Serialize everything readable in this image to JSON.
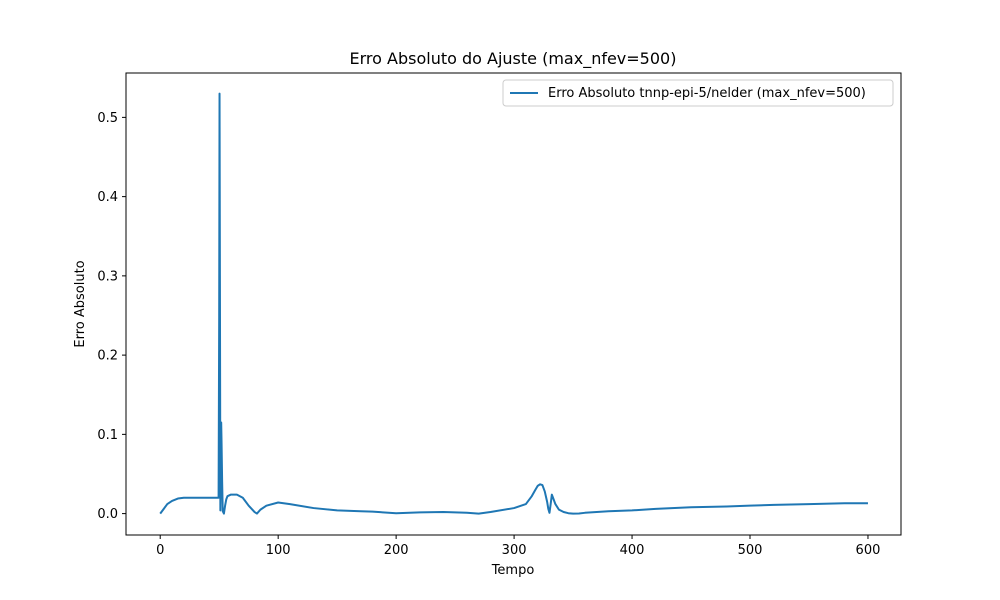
{
  "chart_data": {
    "type": "line",
    "title": "Erro Absoluto do Ajuste (max_nfev=500)",
    "xlabel": "Tempo",
    "ylabel": "Erro Absoluto",
    "xlim": [
      -29,
      628
    ],
    "ylim": [
      -0.027,
      0.556
    ],
    "x_ticks": [
      0,
      100,
      200,
      300,
      400,
      500,
      600
    ],
    "y_ticks": [
      0.0,
      0.1,
      0.2,
      0.3,
      0.4,
      0.5
    ],
    "x_tick_labels": [
      "0",
      "100",
      "200",
      "300",
      "400",
      "500",
      "600"
    ],
    "y_tick_labels": [
      "0.0",
      "0.1",
      "0.2",
      "0.3",
      "0.4",
      "0.5"
    ],
    "grid": false,
    "legend_position": "top-right",
    "colors": {
      "series": "#1f77b4"
    },
    "series": [
      {
        "name": "Erro Absoluto tnnp-epi-5/nelder (max_nfev=500)",
        "x": [
          0,
          3,
          6,
          10,
          15,
          20,
          30,
          40,
          48,
          49.5,
          50,
          50.3,
          50.6,
          51,
          51.3,
          51.7,
          52,
          52.5,
          53,
          54,
          55,
          56,
          57,
          60,
          65,
          70,
          75,
          80,
          82,
          85,
          90,
          100,
          110,
          130,
          150,
          170,
          180,
          200,
          220,
          240,
          260,
          270,
          280,
          300,
          310,
          315,
          318,
          320,
          322,
          324,
          326,
          328,
          329,
          330,
          331,
          332,
          333,
          335,
          338,
          342,
          346,
          350,
          355,
          360,
          370,
          380,
          400,
          420,
          450,
          480,
          500,
          520,
          550,
          580,
          600
        ],
        "y": [
          0.0,
          0.006,
          0.012,
          0.016,
          0.019,
          0.02,
          0.02,
          0.02,
          0.02,
          0.02,
          0.25,
          0.53,
          0.3,
          0.004,
          0.06,
          0.115,
          0.09,
          0.04,
          0.003,
          0.0,
          0.01,
          0.018,
          0.022,
          0.024,
          0.024,
          0.02,
          0.01,
          0.002,
          0.0,
          0.005,
          0.01,
          0.014,
          0.012,
          0.007,
          0.004,
          0.003,
          0.0025,
          0.0005,
          0.0015,
          0.002,
          0.001,
          0.0,
          0.002,
          0.007,
          0.012,
          0.022,
          0.03,
          0.035,
          0.037,
          0.036,
          0.028,
          0.015,
          0.006,
          0.001,
          0.012,
          0.024,
          0.02,
          0.012,
          0.005,
          0.002,
          0.0005,
          0.0,
          0.0002,
          0.001,
          0.002,
          0.003,
          0.004,
          0.006,
          0.008,
          0.009,
          0.01,
          0.011,
          0.012,
          0.013,
          0.013
        ]
      }
    ]
  }
}
